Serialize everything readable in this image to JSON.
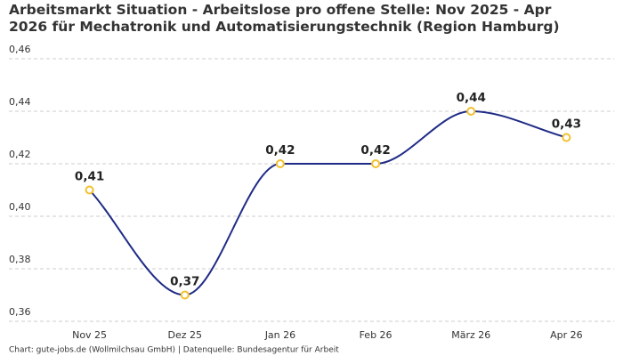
{
  "chart_data": {
    "type": "line",
    "title": "Arbeitsmarkt Situation - Arbeitslose pro offene Stelle: Nov 2025 - Apr 2026 für Mechatronik und Automatisierungstechnik (Region Hamburg)",
    "categories": [
      "Nov 25",
      "Dez 25",
      "Jan 26",
      "Feb 26",
      "März 26",
      "Apr 26"
    ],
    "values": [
      0.41,
      0.37,
      0.42,
      0.42,
      0.44,
      0.43
    ],
    "value_labels": [
      "0,41",
      "0,37",
      "0,42",
      "0,42",
      "0,44",
      "0,43"
    ],
    "color": "#1f2b86",
    "marker_color": "#f2c12e",
    "ylim": [
      0.36,
      0.46
    ],
    "yticks": [
      {
        "value": 0.36,
        "label": "0,36"
      },
      {
        "value": 0.38,
        "label": "0,38"
      },
      {
        "value": 0.4,
        "label": "0,40"
      },
      {
        "value": 0.42,
        "label": "0,42"
      },
      {
        "value": 0.44,
        "label": "0,44"
      },
      {
        "value": 0.46,
        "label": "0,46"
      }
    ],
    "grid": true,
    "source": "Chart: gute-jobs.de (Wollmilchsau GmbH) | Datenquelle: Bundesagentur für Arbeit"
  }
}
